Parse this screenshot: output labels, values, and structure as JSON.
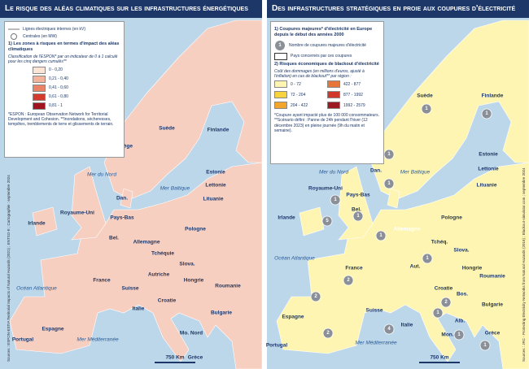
{
  "left": {
    "title": "Le risque des aléas climatiques sur les infrastructures énergétiques",
    "legend": {
      "lines": "Lignes électriques internes (en kV)",
      "plants": "Centrales (en MW)",
      "section": "1) Les zones à risques en termes d'impact des aléas climatiques",
      "method": "Classification de l'ESPON* par un indicateur de 0 à 1 calculé pour les cinq dangers cumulés**",
      "classes": [
        {
          "label": "0 - 0,20",
          "color": "#fce4d6"
        },
        {
          "label": "0,21 - 0,40",
          "color": "#f4b39b"
        },
        {
          "label": "0,41 - 0,60",
          "color": "#ea8366"
        },
        {
          "label": "0,61 - 0,80",
          "color": "#d63a2c"
        },
        {
          "label": "0,81 - 1",
          "color": "#a0141f"
        }
      ],
      "footnote": "*ESPON : European Observation Network for Territorial Development and Cohesion. **Inondations, sécheresses, tempêtes, tremblements de terre et glissements de terrain."
    },
    "places": [
      "Norvège",
      "Suède",
      "Finlande",
      "Estonie",
      "Lettonie",
      "Lituanie",
      "Mer du Nord",
      "Dan.",
      "Mer Baltique",
      "Royaume-Uni",
      "Irlande",
      "Pays-Bas",
      "Bel.",
      "Allemagne",
      "Pologne",
      "Tchéquie",
      "Slova.",
      "Autriche",
      "Hongrie",
      "France",
      "Suisse",
      "Océan Atlantique",
      "Roumanie",
      "Italie",
      "Croatie",
      "Bulgarie",
      "Espagne",
      "Portugal",
      "Mer Méditerranée",
      "Mo. Nord",
      "Grèce"
    ],
    "scale": "750 Km",
    "source": "Sources : ESPON-ESTIA Territorial Impacts of Natural Hazards (2021) ; ENTSO-E ; Cartographie : septembre 2024"
  },
  "right": {
    "title": "Des infrastructures stratégiques en proie aux coupures d'électricité",
    "legend": {
      "section1": "1) Coupures majeures* d'électricité en Europe depuis le début des années 2000",
      "marker_example": 1,
      "marker_text": "Nombre de coupures majeures d'électricité",
      "countries_text": "Pays concernés par ces coupures",
      "section2": "2) Risques économiques de blackout d'électricité",
      "cost": "Coût des dommages (en millions d'euros, ajusté à l'inflation) en cas de blackout** par région :",
      "classes": [
        {
          "label": "0 - 72",
          "color": "#fff5b3"
        },
        {
          "label": "72 - 204",
          "color": "#f8d43c"
        },
        {
          "label": "204 - 422",
          "color": "#f2a52c"
        },
        {
          "label": "422 - 877",
          "color": "#e7763a"
        },
        {
          "label": "877 - 1992",
          "color": "#d2372b"
        },
        {
          "label": "1992 - 2579",
          "color": "#9c1a22"
        }
      ],
      "footnote": "*Coupure ayant impacté plus de 100 000 consommateurs. **Scénario défini : Panne de 24h pendant l'hiver (12 décembre 2023) en pleine journée (9h du matin et semaine)."
    },
    "places": [
      "Suède",
      "Finlande",
      "Estonie",
      "Lettonie",
      "Lituanie",
      "Dan.",
      "Mer du Nord",
      "Mer Baltique",
      "Irlande",
      "Royaume-Uni",
      "Pays-Bas",
      "Bel.",
      "Allemagne",
      "Pologne",
      "Tchéq.",
      "Slova.",
      "Aut.",
      "Hongrie",
      "Roumanie",
      "France",
      "Suisse",
      "Océan Atlantique",
      "Italie",
      "Croatie",
      "Bos.",
      "Alb.",
      "Mon.",
      "Bulgarie",
      "Espagne",
      "Portugal",
      "Mer Méditerranée",
      "Grèce"
    ],
    "markers": [
      1,
      1,
      1,
      1,
      5,
      1,
      1,
      2,
      2,
      1,
      1,
      2,
      4,
      1,
      2,
      1,
      1
    ],
    "scale": "750 Km",
    "source": "Sources : JRC - Protecting Electricity Networks from Natural Hazards (2016) ; Blackout-simulator.com ; septembre 2024"
  }
}
